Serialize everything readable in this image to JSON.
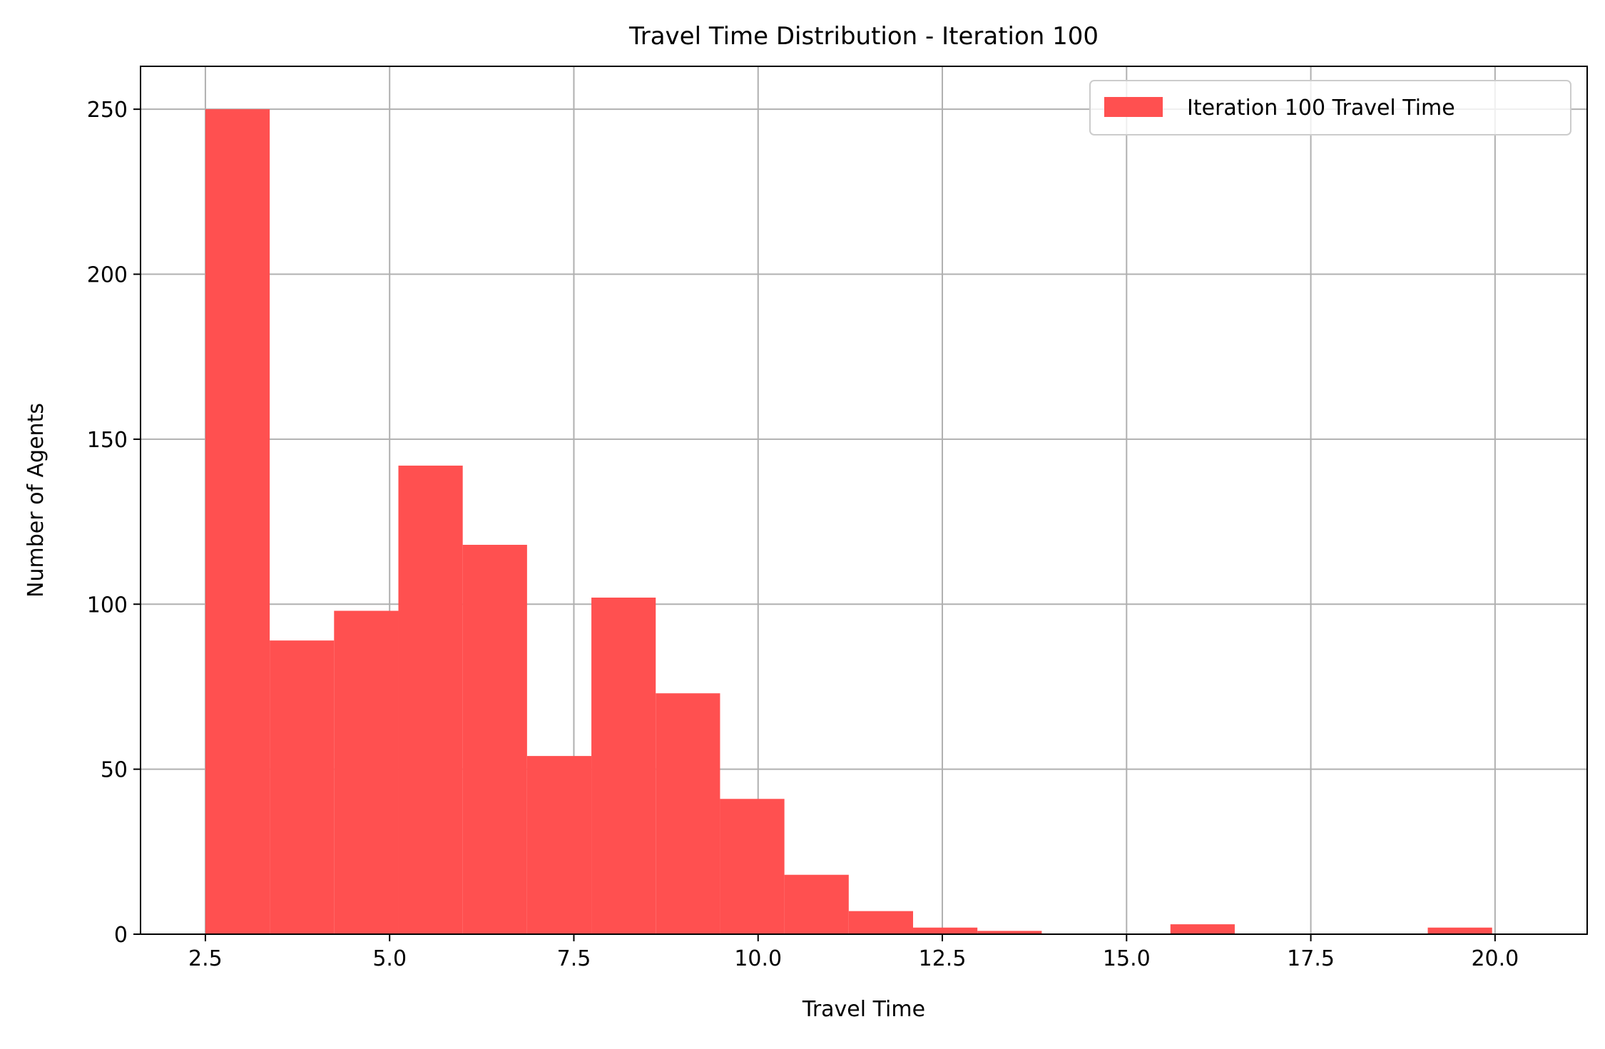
{
  "chart_data": {
    "type": "bar",
    "title": "Travel Time Distribution - Iteration 100",
    "xlabel": "Travel Time",
    "ylabel": "Number of Agents",
    "xlim": [
      1.62,
      21.25
    ],
    "ylim": [
      0,
      263
    ],
    "xticks": [
      2.5,
      5.0,
      7.5,
      10.0,
      12.5,
      15.0,
      17.5,
      20.0
    ],
    "xtick_labels": [
      "2.5",
      "5.0",
      "7.5",
      "10.0",
      "12.5",
      "15.0",
      "17.5",
      "20.0"
    ],
    "yticks": [
      0,
      50,
      100,
      150,
      200,
      250
    ],
    "ytick_labels": [
      "0",
      "50",
      "100",
      "150",
      "200",
      "250"
    ],
    "grid": true,
    "legend_position": "top-right",
    "bin_edges": [
      2.5,
      3.373,
      4.246,
      5.119,
      5.992,
      6.865,
      7.738,
      8.611,
      9.484,
      10.357,
      11.23,
      12.103,
      12.976,
      13.849,
      14.722,
      15.595,
      16.468,
      17.341,
      18.214,
      19.087,
      19.96
    ],
    "series": [
      {
        "name": "Iteration 100 Travel Time",
        "color": "#ff5050",
        "values": [
          250,
          89,
          98,
          142,
          118,
          54,
          102,
          73,
          41,
          18,
          7,
          2,
          1,
          0,
          0,
          3,
          0,
          0,
          0,
          2
        ]
      }
    ]
  }
}
